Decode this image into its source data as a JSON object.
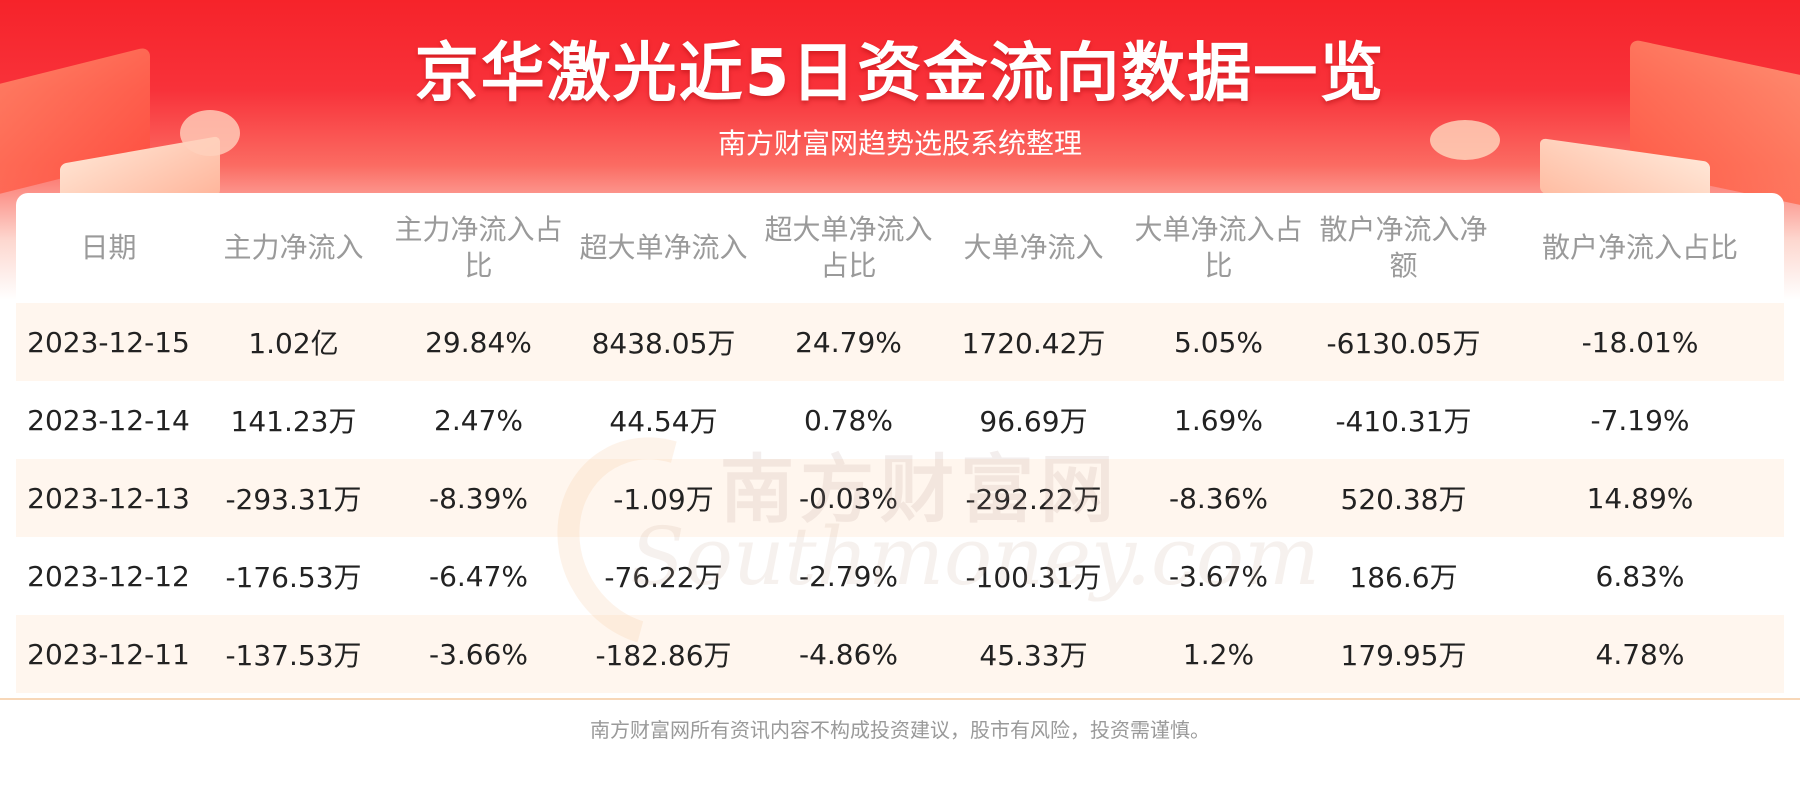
{
  "header": {
    "title": "京华激光近5日资金流向数据一览",
    "subtitle": "南方财富网趋势选股系统整理"
  },
  "table": {
    "columns": [
      "日期",
      "主力净流入",
      "主力净流入占比",
      "超大单净流入",
      "超大单净流入占比",
      "大单净流入",
      "大单净流入占比",
      "散户净流入净额",
      "散户净流入占比"
    ],
    "rows": [
      [
        "2023-12-15",
        "1.02亿",
        "29.84%",
        "8438.05万",
        "24.79%",
        "1720.42万",
        "5.05%",
        "-6130.05万",
        "-18.01%"
      ],
      [
        "2023-12-14",
        "141.23万",
        "2.47%",
        "44.54万",
        "0.78%",
        "96.69万",
        "1.69%",
        "-410.31万",
        "-7.19%"
      ],
      [
        "2023-12-13",
        "-293.31万",
        "-8.39%",
        "-1.09万",
        "-0.03%",
        "-292.22万",
        "-8.36%",
        "520.38万",
        "14.89%"
      ],
      [
        "2023-12-12",
        "-176.53万",
        "-6.47%",
        "-76.22万",
        "-2.79%",
        "-100.31万",
        "-3.67%",
        "186.6万",
        "6.83%"
      ],
      [
        "2023-12-11",
        "-137.53万",
        "-3.66%",
        "-182.86万",
        "-4.86%",
        "45.33万",
        "1.2%",
        "179.95万",
        "4.78%"
      ]
    ]
  },
  "watermark": {
    "cn": "南方财富网",
    "en": "Southmoney.com"
  },
  "footer": {
    "disclaimer": "南方财富网所有资讯内容不构成投资建议，股市有风险，投资需谨慎。"
  },
  "colors": {
    "banner_red": "#f6232a",
    "header_text": "#9a9a9a",
    "row_stripe": "#fff6ee",
    "cell_text": "#222222",
    "divider": "#f7d7b8"
  }
}
